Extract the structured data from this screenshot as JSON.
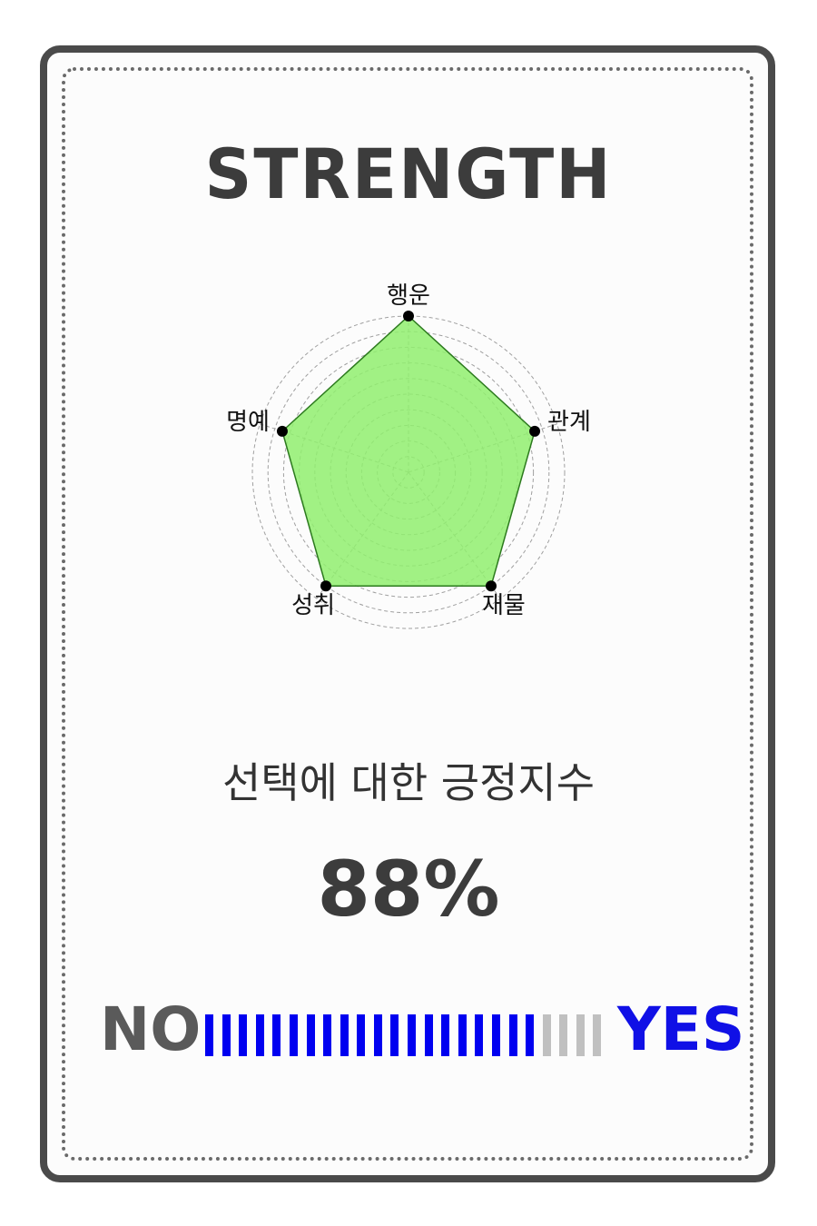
{
  "card": {
    "title": "STRENGTH",
    "subtitle": "선택에 대한 긍정지수",
    "percent_text": "88%"
  },
  "chart_data": {
    "type": "radar",
    "axes": [
      "행운",
      "관계",
      "재물",
      "성취",
      "명예"
    ],
    "values": [
      1.0,
      0.85,
      0.9,
      0.9,
      0.85
    ],
    "range": [
      0,
      1
    ],
    "rings": 10,
    "fill_color": "#90ee6e",
    "line_color": "#2c7a1e",
    "grid_color": "#a0a0a0",
    "point_color": "#000000"
  },
  "gauge": {
    "no_label": "NO",
    "yes_label": "YES",
    "value": 0.88,
    "active_color": "#0000f0",
    "inactive_color": "#c0c0c0"
  }
}
